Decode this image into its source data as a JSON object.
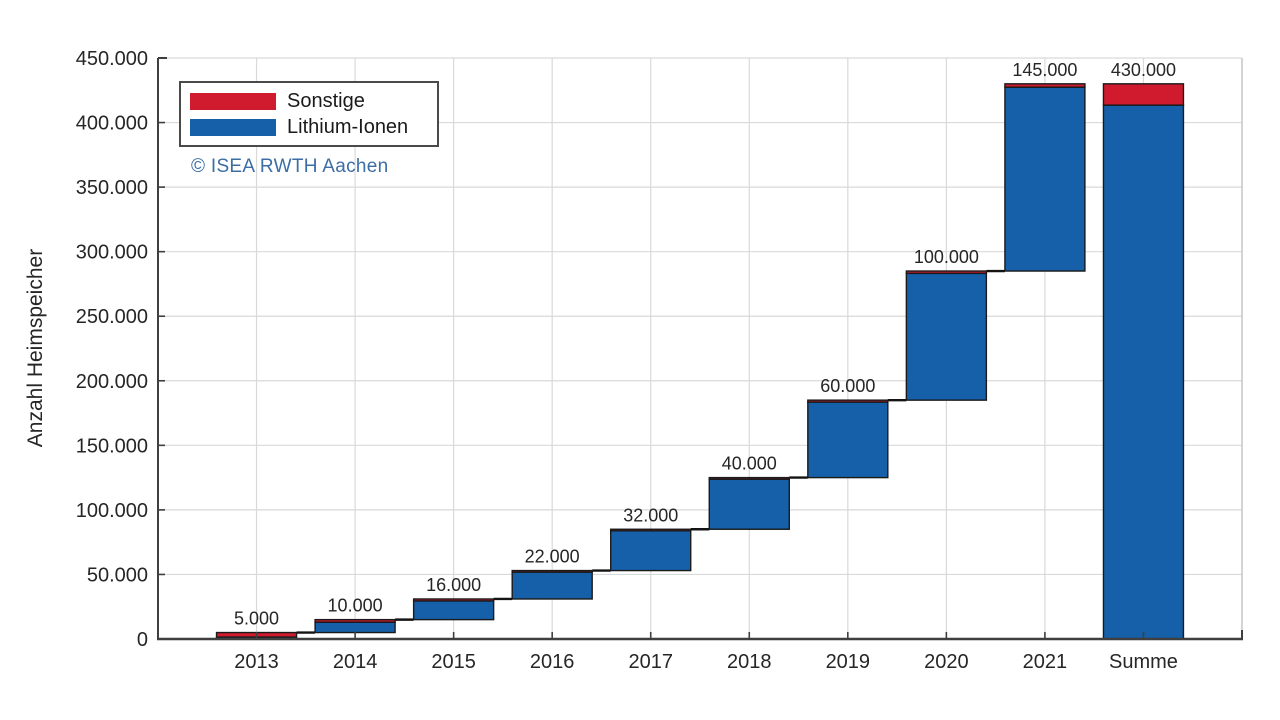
{
  "chart_data": {
    "type": "bar",
    "subtype": "stacked-waterfall",
    "ylabel": "Anzahl Heimspeicher",
    "categories": [
      "2013",
      "2014",
      "2015",
      "2016",
      "2017",
      "2018",
      "2019",
      "2020",
      "2021",
      "Summe"
    ],
    "bar_labels": [
      "5.000",
      "10.000",
      "16.000",
      "22.000",
      "32.000",
      "40.000",
      "60.000",
      "100.000",
      "145.000",
      "430.000"
    ],
    "increments": [
      5000,
      10000,
      16000,
      22000,
      32000,
      40000,
      60000,
      100000,
      145000
    ],
    "total": 430000,
    "total_column_index": 9,
    "series": [
      {
        "name": "Sonstige",
        "color": "#d01a2d",
        "values": [
          3500,
          2000,
          1500,
          1200,
          1200,
          1200,
          1500,
          1800,
          2600,
          16500
        ]
      },
      {
        "name": "Lithium-Ionen",
        "color": "#1560a8",
        "values": [
          1500,
          8000,
          14500,
          20800,
          30800,
          38800,
          58500,
          98200,
          142400,
          413500
        ]
      }
    ],
    "ylim": [
      0,
      450000
    ],
    "ytick_step": 50000,
    "ytick_labels": [
      "0",
      "50.000",
      "100.000",
      "150.000",
      "200.000",
      "250.000",
      "300.000",
      "350.000",
      "400.000",
      "450.000"
    ],
    "grid": true,
    "legend_position": "top-left-inside"
  },
  "legend": {
    "items": [
      {
        "label": "Sonstige",
        "color": "#d01a2d"
      },
      {
        "label": "Lithium-Ionen",
        "color": "#1560a8"
      }
    ]
  },
  "annotations": {
    "copyright": "© ISEA RWTH Aachen",
    "copyright_color": "#3c6ea5"
  },
  "colors": {
    "sonstige_red": "#d01a2d",
    "lithium_blue": "#1560a8",
    "grid": "#d9d9d9",
    "box": "#c2c2c2",
    "axis": "#3f3f3f",
    "connector": "#141414",
    "bar_stroke": "#1a1a1a",
    "text": "#262626"
  }
}
